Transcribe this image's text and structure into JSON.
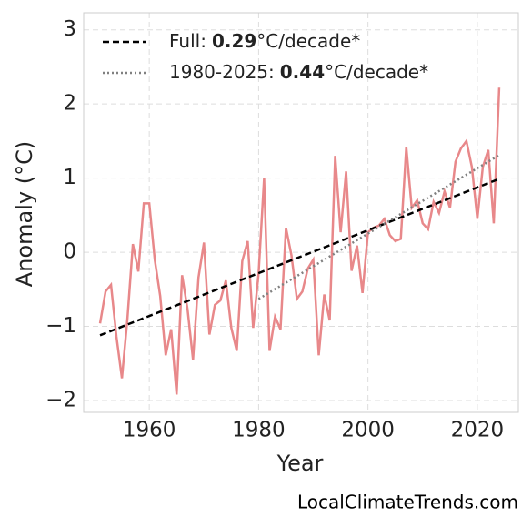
{
  "chart_data": {
    "type": "line",
    "xlabel": "Year",
    "ylabel": "Anomaly (°C)",
    "watermark": "LocalClimateTrends.com",
    "xlim": [
      1948,
      2027.5
    ],
    "ylim": [
      -2.16,
      3.23
    ],
    "xticks": [
      1960,
      1980,
      2000,
      2020
    ],
    "yticks": [
      {
        "value": -2,
        "label": "−2"
      },
      {
        "value": -1,
        "label": "−1"
      },
      0,
      1,
      2,
      3
    ],
    "grid": true,
    "anomaly": {
      "color": "#e8888a",
      "x": [
        1951,
        1952,
        1953,
        1954,
        1955,
        1956,
        1957,
        1958,
        1959,
        1960,
        1961,
        1962,
        1963,
        1964,
        1965,
        1966,
        1967,
        1968,
        1969,
        1970,
        1971,
        1972,
        1973,
        1974,
        1975,
        1976,
        1977,
        1978,
        1979,
        1980,
        1981,
        1982,
        1983,
        1984,
        1985,
        1986,
        1987,
        1988,
        1989,
        1990,
        1991,
        1992,
        1993,
        1994,
        1995,
        1996,
        1997,
        1998,
        1999,
        2000,
        2001,
        2002,
        2003,
        2004,
        2005,
        2006,
        2007,
        2008,
        2009,
        2010,
        2011,
        2012,
        2013,
        2014,
        2015,
        2016,
        2017,
        2018,
        2019,
        2020,
        2021,
        2022,
        2023,
        2024
      ],
      "values": [
        -0.96,
        -0.53,
        -0.44,
        -1.14,
        -1.7,
        -0.9,
        0.11,
        -0.26,
        0.66,
        0.66,
        -0.1,
        -0.59,
        -1.39,
        -1.04,
        -1.92,
        -0.31,
        -0.77,
        -1.45,
        -0.34,
        0.13,
        -1.11,
        -0.71,
        -0.65,
        -0.38,
        -1.02,
        -1.33,
        -0.12,
        0.15,
        -1.02,
        -0.28,
        1.0,
        -1.33,
        -0.87,
        -1.04,
        0.33,
        -0.04,
        -0.63,
        -0.53,
        -0.22,
        -0.1,
        -1.39,
        -0.57,
        -0.92,
        1.3,
        0.27,
        1.09,
        -0.25,
        0.09,
        -0.55,
        0.27,
        0.33,
        0.36,
        0.45,
        0.23,
        0.15,
        0.18,
        1.42,
        0.6,
        0.7,
        0.39,
        0.31,
        0.68,
        0.53,
        0.82,
        0.6,
        1.22,
        1.4,
        1.5,
        1.15,
        0.45,
        1.15,
        1.38,
        0.39,
        2.22
      ]
    },
    "legend": "upper left",
    "series": [
      {
        "name": "Full:",
        "rate": 0.29,
        "unit": "°C/decade*",
        "color": "#000000",
        "dash": "dashed",
        "x": [
          1951,
          2024
        ],
        "values": [
          -1.12,
          0.99
        ]
      },
      {
        "name": "1980-2025:",
        "rate": 0.44,
        "unit": "°C/decade*",
        "color": "#808080",
        "dash": "dotted",
        "x": [
          1980,
          2024
        ],
        "values": [
          -0.63,
          1.31
        ]
      }
    ]
  }
}
